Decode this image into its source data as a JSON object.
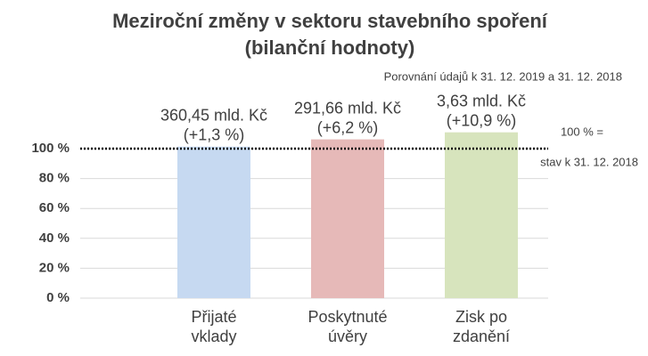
{
  "chart_data": {
    "type": "bar",
    "title": "Meziroční změny v sektoru stavebního spoření",
    "subtitle": "(bilanční hodnoty)",
    "note": "Porovnání údajů k 31. 12. 2019 a 31. 12. 2018",
    "categories": [
      "Přijaté vklady",
      "Poskytnuté úvěry",
      "Zisk po zdanění"
    ],
    "values": [
      101.3,
      106.2,
      110.9
    ],
    "amount_labels": [
      "360,45 mld. Kč",
      "291,66 mld. Kč",
      "3,63 mld. Kč"
    ],
    "change_labels": [
      "(+1,3 %)",
      "(+6,2 %)",
      "(+10,9 %)"
    ],
    "colors": [
      "#c6d9f1",
      "#e6b9b8",
      "#d7e4bd"
    ],
    "ylim": [
      0,
      120
    ],
    "yticks": [
      {
        "value": 0,
        "label": "0 %"
      },
      {
        "value": 20,
        "label": "20 %"
      },
      {
        "value": 40,
        "label": "40 %"
      },
      {
        "value": 60,
        "label": "60 %"
      },
      {
        "value": 80,
        "label": "80 %"
      },
      {
        "value": 100,
        "label": "100 %"
      }
    ],
    "grid": true,
    "reference_line": {
      "value": 100,
      "label": "100 % =",
      "sublabel": "stav k 31. 12. 2018"
    }
  }
}
